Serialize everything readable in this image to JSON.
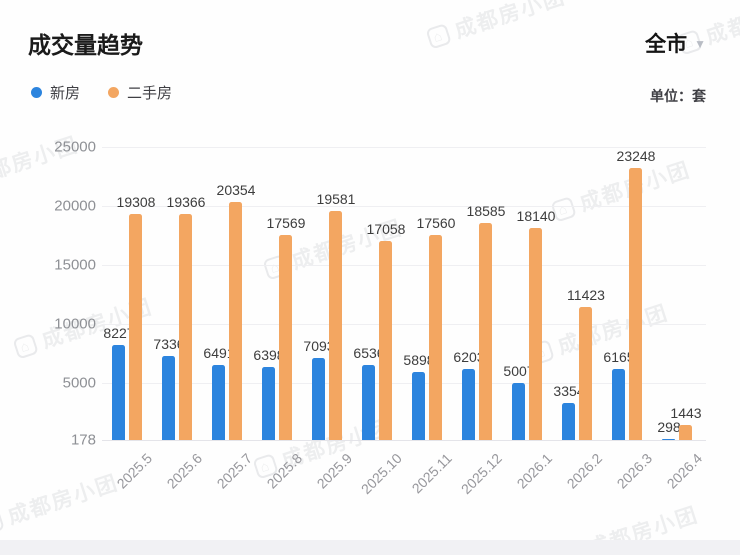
{
  "header": {
    "title": "成交量趋势",
    "region_selector": "全市",
    "unit_label": "单位：套"
  },
  "legend": {
    "items": [
      {
        "label": "新房",
        "color": "#2c84de"
      },
      {
        "label": "二手房",
        "color": "#f3a661"
      }
    ]
  },
  "watermark": {
    "text": "成都房小团",
    "icon": "house-icon"
  },
  "chart_data": {
    "type": "bar",
    "title": "成交量趋势",
    "unit": "套",
    "categories": [
      "2025.5",
      "2025.6",
      "2025.7",
      "2025.8",
      "2025.9",
      "2025.10",
      "2025.11",
      "2025.12",
      "2026.1",
      "2026.2",
      "2026.3",
      "2026.4"
    ],
    "series": [
      {
        "name": "新房",
        "color": "#2c84de",
        "values": [
          8227,
          7336,
          6491,
          6398,
          7093,
          6536,
          5898,
          6203,
          5007,
          3354,
          6165,
          298
        ]
      },
      {
        "name": "二手房",
        "color": "#f3a661",
        "values": [
          19308,
          19366,
          20354,
          17569,
          19581,
          17058,
          17560,
          18585,
          18140,
          11423,
          23248,
          1443
        ]
      }
    ],
    "y_ticks": [
      178,
      5000,
      10000,
      15000,
      20000,
      25000
    ],
    "ylim": [
      178,
      25000
    ],
    "grid": true,
    "legend_position": "top-left",
    "bar_value_labels": true,
    "x_label_rotation": -45
  }
}
